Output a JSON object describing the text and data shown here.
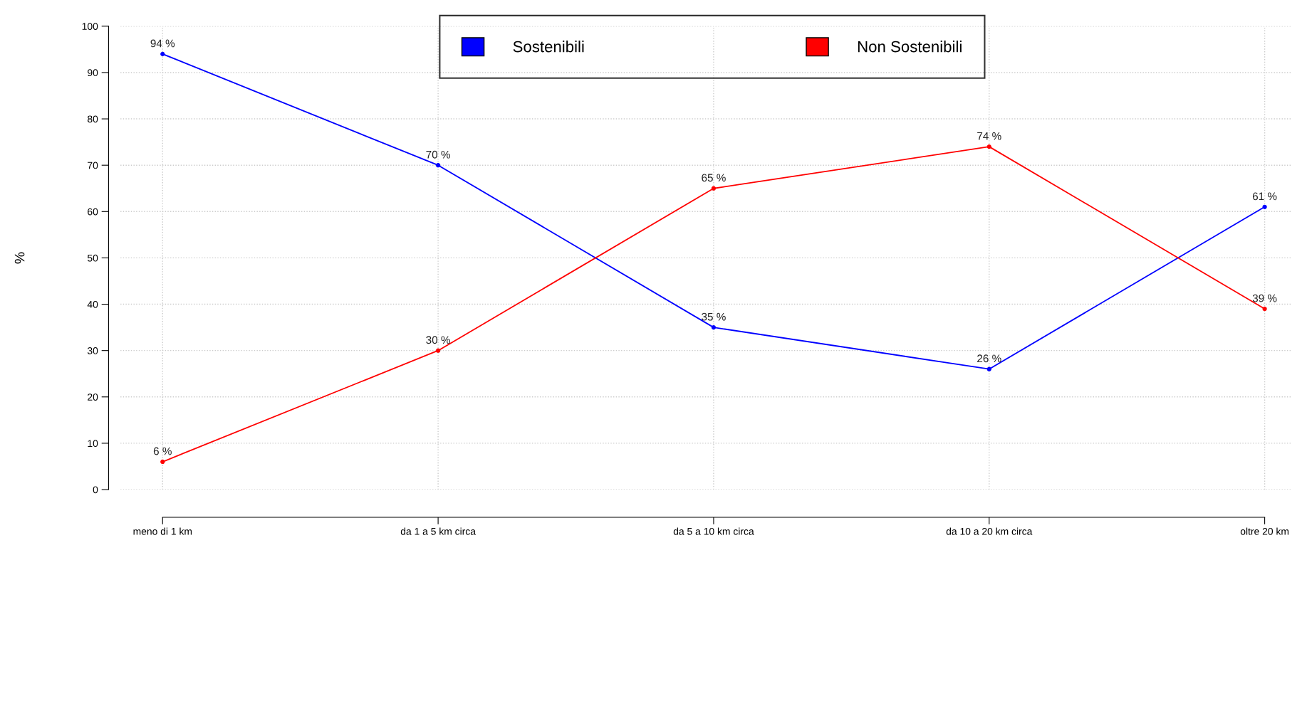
{
  "chart_data": {
    "type": "line",
    "ylabel": "%",
    "categories": [
      "meno di 1 km",
      "da 1 a 5 km circa",
      "da 5 a 10 km circa",
      "da 10 a 20 km circa",
      "oltre 20 km"
    ],
    "series": [
      {
        "name": "Sostenibili",
        "color": "#0000ff",
        "values": [
          94,
          70,
          35,
          26,
          61
        ],
        "value_labels": [
          "94 %",
          "70 %",
          "35 %",
          "26 %",
          "61 %"
        ]
      },
      {
        "name": "Non Sostenibili",
        "color": "#ff0000",
        "values": [
          6,
          30,
          65,
          74,
          39
        ],
        "value_labels": [
          "6 %",
          "30 %",
          "65 %",
          "74 %",
          "39 %"
        ]
      }
    ],
    "ylim": [
      0,
      100
    ],
    "yticks": [
      0,
      10,
      20,
      30,
      40,
      50,
      60,
      70,
      80,
      90,
      100
    ],
    "grid": true,
    "legend": "top",
    "marker": "circle",
    "line_style": "solid"
  }
}
